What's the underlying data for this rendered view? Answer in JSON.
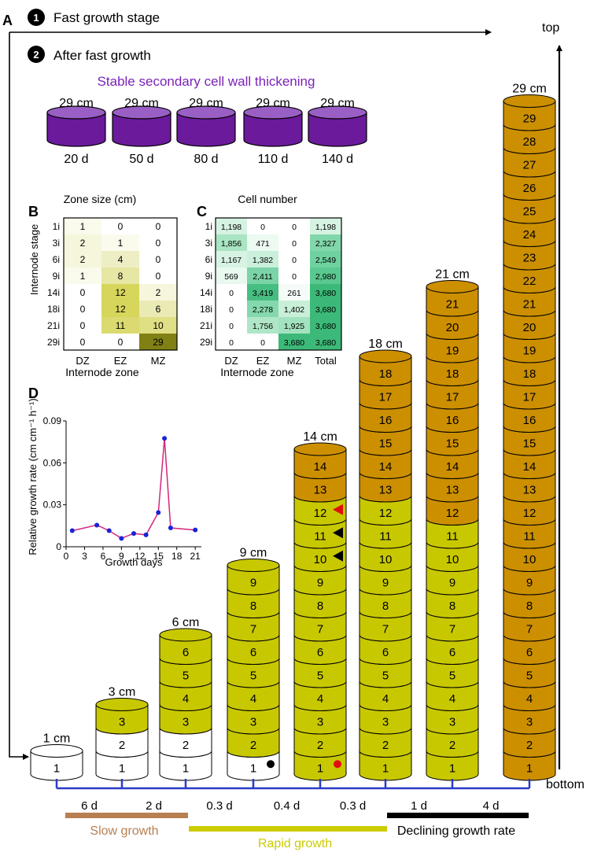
{
  "panel_a": {
    "label": "A",
    "stage1_num": "1",
    "stage1_text": "Fast growth stage",
    "stage2_num": "2",
    "stage2_text": "After fast growth",
    "stable_title": "Stable secondary cell wall thickening",
    "top_label": "top",
    "bottom_label": "bottom",
    "stable": [
      {
        "height": "29 cm",
        "day": "20 d"
      },
      {
        "height": "29 cm",
        "day": "50 d"
      },
      {
        "height": "29 cm",
        "day": "80 d"
      },
      {
        "height": "29 cm",
        "day": "110 d"
      },
      {
        "height": "29 cm",
        "day": "140 d"
      }
    ],
    "columns": [
      {
        "height_label": "1 cm",
        "n": 1,
        "colored": 0,
        "dark": 0,
        "marker": "none"
      },
      {
        "height_label": "3 cm",
        "n": 3,
        "colored": 1,
        "dark": 0,
        "marker": "none"
      },
      {
        "height_label": "6 cm",
        "n": 6,
        "colored": 4,
        "dark": 0,
        "marker": "none"
      },
      {
        "height_label": "9 cm",
        "n": 9,
        "colored": 8,
        "dark": 0,
        "marker": "black-dot"
      },
      {
        "height_label": "14 cm",
        "n": 14,
        "colored": 14,
        "dark": 2,
        "marker": "red-dot"
      },
      {
        "height_label": "18 cm",
        "n": 18,
        "colored": 18,
        "dark": 6,
        "marker": "none"
      },
      {
        "height_label": "21 cm",
        "n": 21,
        "colored": 21,
        "dark": 10,
        "marker": "none"
      },
      {
        "height_label": "29 cm",
        "n": 29,
        "colored": 29,
        "dark": 29,
        "marker": "none"
      }
    ],
    "intervals": [
      "6 d",
      "2 d",
      "0.3 d",
      "0.4 d",
      "0.3 d",
      "1 d",
      "4 d"
    ],
    "phases": {
      "slow": "Slow growth",
      "rapid": "Rapid growth",
      "declining": "Declining growth rate"
    },
    "colors": {
      "white": "#ffffff",
      "yellow": "#c8c800",
      "orange": "#cc8f00",
      "purple": "#6b1a9c",
      "purple_light": "#9a5fc4",
      "blue": "#2b3bc8",
      "slow": "#b87f50",
      "rapid": "#cccc00",
      "declining": "#000000",
      "red": "#e01010",
      "purple_text": "#7a22b8"
    }
  },
  "panel_b": {
    "label": "B",
    "title": "Zone size (cm)",
    "ylabel": "Internode stage",
    "xlabel": "Internode zone",
    "rows": [
      "1i",
      "3i",
      "6i",
      "9i",
      "14i",
      "18i",
      "21i",
      "29i"
    ],
    "cols": [
      "DZ",
      "EZ",
      "MZ"
    ],
    "values": [
      [
        1,
        0,
        0
      ],
      [
        2,
        1,
        0
      ],
      [
        2,
        4,
        0
      ],
      [
        1,
        8,
        0
      ],
      [
        0,
        12,
        2
      ],
      [
        0,
        12,
        6
      ],
      [
        0,
        11,
        10
      ],
      [
        0,
        0,
        29
      ]
    ],
    "display": [
      [
        "1",
        "0",
        "0"
      ],
      [
        "2",
        "1",
        "0"
      ],
      [
        "2",
        "4",
        "0"
      ],
      [
        "1",
        "8",
        "0"
      ],
      [
        "0",
        "12",
        "2"
      ],
      [
        "0",
        "12",
        "6"
      ],
      [
        "0",
        "11",
        "10"
      ],
      [
        "0",
        "0",
        "29"
      ]
    ]
  },
  "panel_c": {
    "label": "C",
    "title": "Cell number",
    "xlabel": "Internode zone",
    "rows": [
      "1i",
      "3i",
      "6i",
      "9i",
      "14i",
      "18i",
      "21i",
      "29i"
    ],
    "cols": [
      "DZ",
      "EZ",
      "MZ",
      "Total"
    ],
    "values": [
      [
        1198,
        0,
        0,
        1198
      ],
      [
        1856,
        471,
        0,
        2327
      ],
      [
        1167,
        1382,
        0,
        2549
      ],
      [
        569,
        2411,
        0,
        2980
      ],
      [
        0,
        3419,
        261,
        3680
      ],
      [
        0,
        2278,
        1402,
        3680
      ],
      [
        0,
        1756,
        1925,
        3680
      ],
      [
        0,
        0,
        3680,
        3680
      ]
    ],
    "display": [
      [
        "1,198",
        "0",
        "0",
        "1,198"
      ],
      [
        "1,856",
        "471",
        "0",
        "2,327"
      ],
      [
        "1,167",
        "1,382",
        "0",
        "2,549"
      ],
      [
        "569",
        "2,411",
        "0",
        "2,980"
      ],
      [
        "0",
        "3,419",
        "261",
        "3,680"
      ],
      [
        "0",
        "2,278",
        "1,402",
        "3,680"
      ],
      [
        "0",
        "1,756",
        "1,925",
        "3,680"
      ],
      [
        "0",
        "0",
        "3,680",
        "3,680"
      ]
    ]
  },
  "panel_d": {
    "label": "D",
    "chart_data": {
      "type": "line",
      "title": "",
      "xlabel": "Growth days",
      "ylabel": "Relative growth rate (cm cm⁻¹ h⁻¹)",
      "x": [
        1,
        5,
        7,
        9,
        11,
        13,
        15,
        16,
        17,
        21
      ],
      "y": [
        0.0115,
        0.0155,
        0.0115,
        0.006,
        0.0095,
        0.0085,
        0.0245,
        0.0775,
        0.0135,
        0.012
      ],
      "xticks": [
        "0",
        "3",
        "6",
        "9",
        "12",
        "15",
        "18",
        "21"
      ],
      "yticks": [
        "0",
        "0.03",
        "0.06",
        "0.09"
      ],
      "xlim": [
        0,
        22
      ],
      "ylim": [
        0,
        0.09
      ],
      "line_color": "#d4267e",
      "marker_color": "#1a23d6"
    }
  }
}
